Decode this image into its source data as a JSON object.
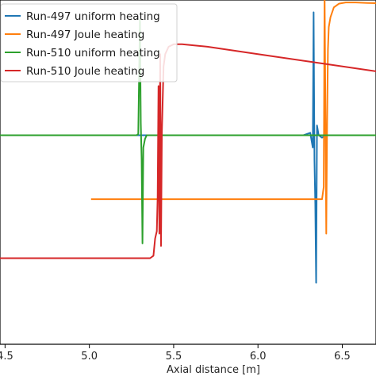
{
  "chart_data": {
    "type": "line",
    "title": "",
    "xlabel": "Axial distance [m]",
    "ylabel": "",
    "xlim": [
      4.47,
      6.7
    ],
    "ylim": [
      -0.85,
      0.55
    ],
    "x_ticks": [
      4.5,
      5.0,
      5.5,
      6.0,
      6.5
    ],
    "x_tick_labels": [
      "4.5",
      "5.0",
      "5.5",
      "6.0",
      "6.5"
    ],
    "grid": false,
    "legend_position": "upper-left",
    "series": [
      {
        "name": "Run-497 uniform heating",
        "color": "#1f77b4",
        "x": [
          4.47,
          6.27,
          6.31,
          6.325,
          6.33,
          6.335,
          6.34,
          6.345,
          6.35,
          6.36,
          6.38,
          6.4,
          6.7
        ],
        "y": [
          0.0,
          0.0,
          0.01,
          -0.05,
          0.5,
          -0.1,
          -0.28,
          -0.6,
          0.04,
          0.0,
          -0.01,
          0.0,
          0.0
        ]
      },
      {
        "name": "Run-497 Joule heating",
        "color": "#ff7f0e",
        "x": [
          5.01,
          6.37,
          6.38,
          6.39,
          6.395,
          6.4,
          6.405,
          6.41,
          6.415,
          6.42,
          6.43,
          6.45,
          6.48,
          6.52,
          6.58,
          6.65,
          6.7
        ],
        "y": [
          -0.26,
          -0.26,
          -0.26,
          -0.21,
          0.59,
          0.1,
          -0.4,
          0.05,
          0.35,
          0.44,
          0.48,
          0.52,
          0.535,
          0.54,
          0.54,
          0.538,
          0.537
        ]
      },
      {
        "name": "Run-510 uniform heating",
        "color": "#2ca02c",
        "x": [
          4.47,
          5.28,
          5.29,
          5.3,
          5.305,
          5.31,
          5.315,
          5.32,
          5.33,
          5.34,
          5.36,
          6.7
        ],
        "y": [
          0.0,
          0.0,
          0.005,
          0.47,
          0.05,
          -0.1,
          -0.44,
          -0.05,
          -0.015,
          0.0,
          0.0,
          0.0
        ]
      },
      {
        "name": "Run-510 Joule heating",
        "color": "#d62728",
        "x": [
          4.47,
          5.32,
          5.36,
          5.38,
          5.39,
          5.4,
          5.405,
          5.41,
          5.415,
          5.42,
          5.425,
          5.43,
          5.44,
          5.45,
          5.47,
          5.5,
          5.55,
          5.7,
          6.0,
          6.3,
          6.7
        ],
        "y": [
          -0.5,
          -0.5,
          -0.5,
          -0.49,
          -0.42,
          -0.39,
          -0.25,
          0.2,
          -0.4,
          0.33,
          -0.45,
          0.01,
          0.28,
          0.33,
          0.36,
          0.37,
          0.37,
          0.36,
          0.33,
          0.3,
          0.26
        ]
      }
    ]
  }
}
